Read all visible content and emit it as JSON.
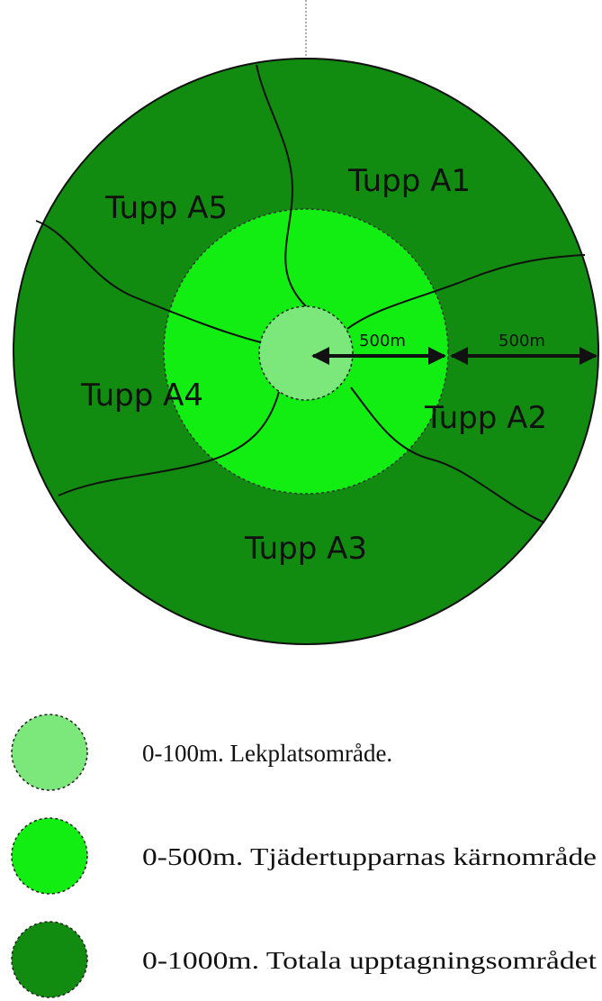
{
  "zones": [
    "Tupp A1",
    "Tupp A2",
    "Tupp A3",
    "Tupp A4",
    "Tupp A5"
  ],
  "distances": [
    "500m",
    "500m"
  ],
  "legend": [
    "0-100m. Lekplatsområde.",
    "0-500m. Tjädertupparnas kärnområde",
    "0-1000m. Totala upptagningsområdet"
  ]
}
